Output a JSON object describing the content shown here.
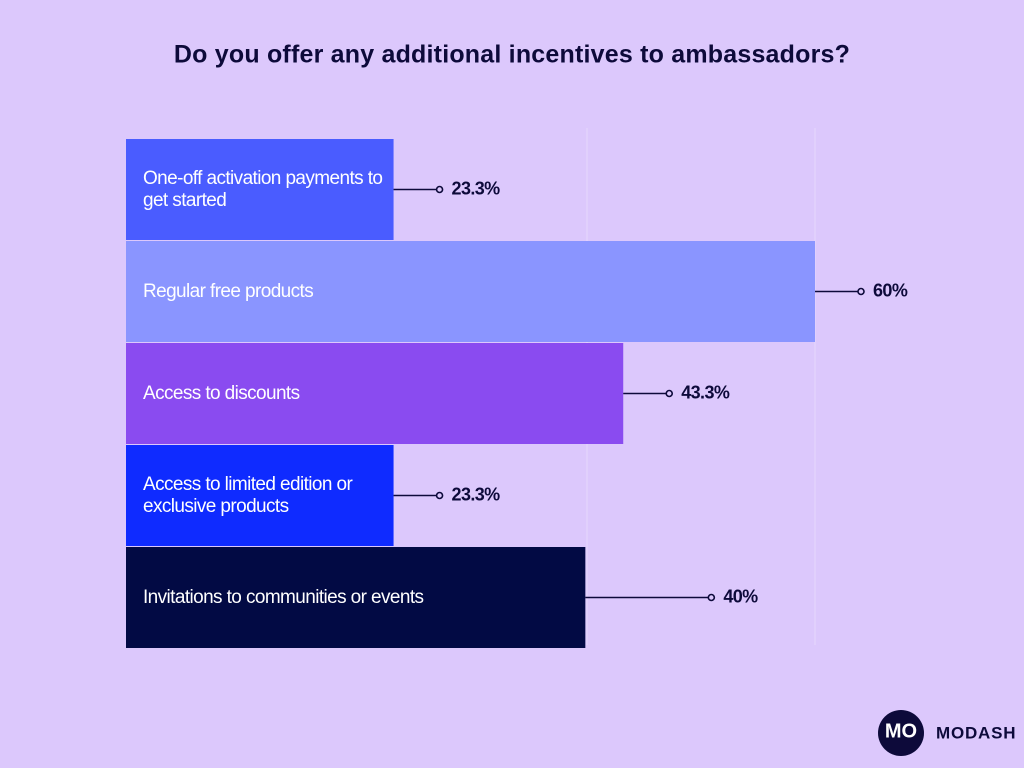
{
  "chart_data": {
    "type": "bar",
    "orientation": "horizontal",
    "title": "Do you offer any additional incentives to ambassadors?",
    "categories": [
      "One-off activation payments to get started",
      "Regular free products",
      "Access to discounts",
      "Access to limited edition or exclusive products",
      "Invitations to communities or events"
    ],
    "values": [
      23.3,
      60,
      43.3,
      23.3,
      40
    ],
    "value_labels": [
      "23.3%",
      "60%",
      "43.3%",
      "23.3%",
      "40%"
    ],
    "colors": [
      "#4a5cff",
      "#8a95ff",
      "#8a4bf0",
      "#0f2bff",
      "#020a44"
    ],
    "xlim": [
      0,
      60
    ]
  },
  "branding": {
    "logo_mark": "MO",
    "name": "MODASH"
  }
}
